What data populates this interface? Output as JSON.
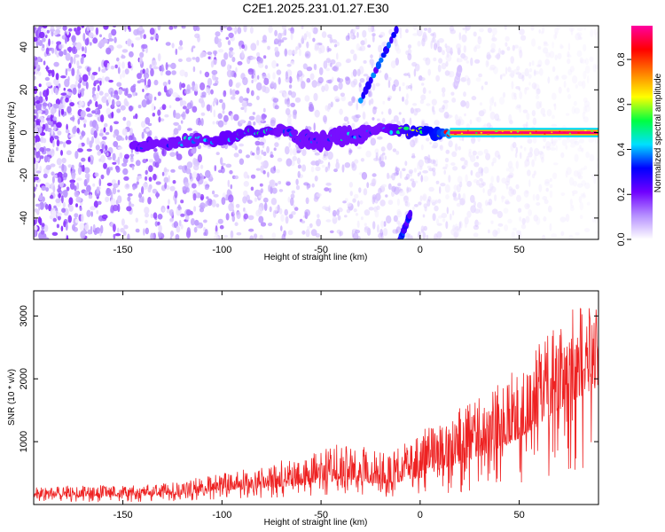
{
  "figure": {
    "title": "C2E1.2025.231.01.27.E30"
  },
  "colors": {
    "noise": "#8a2be2",
    "snr_line": "#ee2222",
    "colormap": [
      "#ffffff",
      "#b690ff",
      "#7000ff",
      "#0000ff",
      "#00e0ff",
      "#00ff40",
      "#ffff00",
      "#ff8000",
      "#ff0000",
      "#ff00a0"
    ]
  },
  "chart_data": [
    {
      "type": "heatmap",
      "name": "spectrogram",
      "xlabel": "Height of straight line (km)",
      "ylabel": "Frequency (Hz)",
      "xlim": [
        -195,
        90
      ],
      "ylim": [
        -50,
        50
      ],
      "xticks": [
        "-150",
        "-100",
        "-50",
        "0",
        "50"
      ],
      "xtick_values": [
        -150,
        -100,
        -50,
        0,
        50
      ],
      "yticks": [
        "40",
        "20",
        "0",
        "-20",
        "-40"
      ],
      "ytick_values": [
        40,
        20,
        0,
        -20,
        -40
      ],
      "colorbar": {
        "label": "Normalized spectral amplitude",
        "range": [
          0,
          0.95
        ],
        "ticks": [
          "0.0",
          "0.2",
          "0.4",
          "0.6",
          "0.8"
        ],
        "tick_values": [
          0.0,
          0.2,
          0.4,
          0.6,
          0.8
        ]
      },
      "ridge": {
        "x": [
          -145,
          -130,
          -115,
          -100,
          -90,
          -80,
          -70,
          -60,
          -50,
          -40,
          -30,
          -20,
          -10,
          0,
          10,
          20,
          50,
          88
        ],
        "frequency": [
          -6,
          -5,
          -4,
          -3,
          -1,
          1,
          1,
          -3,
          -4,
          -2,
          -1,
          1,
          1,
          0,
          0,
          0,
          0,
          0
        ],
        "amplitude": [
          0.25,
          0.3,
          0.35,
          0.4,
          0.4,
          0.42,
          0.35,
          0.3,
          0.32,
          0.35,
          0.3,
          0.35,
          0.45,
          0.55,
          0.6,
          0.85,
          0.9,
          0.92
        ]
      },
      "oblique_streaks": [
        {
          "x": [
            -30,
            -12
          ],
          "frequency": [
            15,
            48
          ],
          "amplitude": 0.3
        },
        {
          "x": [
            -10,
            -5
          ],
          "frequency": [
            -50,
            -38
          ],
          "amplitude": 0.3
        },
        {
          "x": [
            18,
            20
          ],
          "frequency": [
            22,
            30
          ],
          "amplitude": 0.05
        }
      ]
    },
    {
      "type": "line",
      "name": "snr",
      "xlabel": "Height of straight line (km)",
      "ylabel": "SNR (10 * v/v)",
      "xlim": [
        -195,
        90
      ],
      "ylim": [
        0,
        3400
      ],
      "xticks": [
        "-150",
        "-100",
        "-50",
        "0",
        "50"
      ],
      "xtick_values": [
        -150,
        -100,
        -50,
        0,
        50
      ],
      "yticks": [
        "1000",
        "2000",
        "3000"
      ],
      "ytick_values": [
        1000,
        2000,
        3000
      ],
      "envelope": {
        "x": [
          -195,
          -150,
          -120,
          -100,
          -80,
          -60,
          -50,
          -40,
          -30,
          -20,
          -10,
          0,
          10,
          20,
          30,
          40,
          50,
          60,
          70,
          80,
          88
        ],
        "baseline": [
          120,
          130,
          160,
          220,
          260,
          300,
          350,
          380,
          350,
          330,
          360,
          420,
          560,
          650,
          760,
          880,
          1050,
          1250,
          1500,
          1700,
          1850
        ],
        "peak": [
          280,
          300,
          350,
          500,
          600,
          750,
          900,
          1000,
          950,
          850,
          1000,
          1100,
          1300,
          1500,
          1700,
          1950,
          2200,
          2550,
          2900,
          3200,
          3400
        ]
      }
    }
  ]
}
